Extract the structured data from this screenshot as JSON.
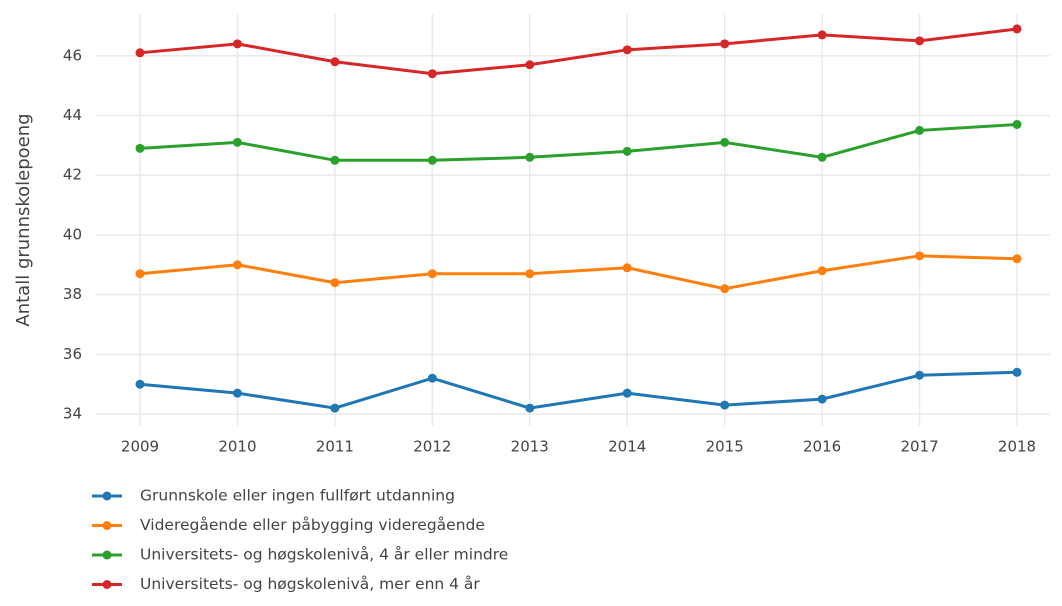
{
  "chart_data": {
    "type": "line",
    "y_label": "Antall grunnskolepoeng",
    "categories": [
      "2009",
      "2010",
      "2011",
      "2012",
      "2013",
      "2014",
      "2015",
      "2016",
      "2017",
      "2018"
    ],
    "series": [
      {
        "name": "Grunnskole eller ingen fullført utdanning",
        "color": "#1f77b4",
        "values": [
          35.0,
          34.7,
          34.2,
          35.2,
          34.2,
          34.7,
          34.3,
          34.5,
          35.3,
          35.4
        ]
      },
      {
        "name": "Videregående eller påbygging videregående",
        "color": "#ff7f0e",
        "values": [
          38.7,
          39.0,
          38.4,
          38.7,
          38.7,
          38.9,
          38.2,
          38.8,
          39.3,
          39.2
        ]
      },
      {
        "name": "Universitets- og høgskolenivå, 4 år eller mindre",
        "color": "#2ca02c",
        "values": [
          42.9,
          43.1,
          42.5,
          42.5,
          42.6,
          42.8,
          43.1,
          42.6,
          43.5,
          43.7
        ]
      },
      {
        "name": "Universitets- og høgskolenivå, mer enn 4 år",
        "color": "#d62728",
        "values": [
          46.1,
          46.4,
          45.8,
          45.4,
          45.7,
          46.2,
          46.4,
          46.7,
          46.5,
          46.9
        ]
      }
    ],
    "ylim": [
      33.6,
      47.4
    ],
    "yticks": [
      34,
      36,
      38,
      40,
      42,
      44,
      46
    ],
    "grid": true
  }
}
